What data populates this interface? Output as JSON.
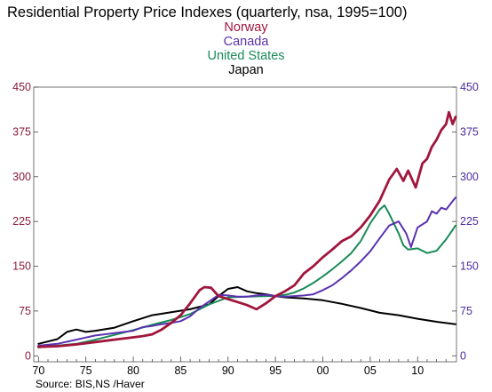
{
  "chart_data": {
    "type": "line",
    "title": "Residential Property Price Indexes  (quarterly, nsa, 1995=100)",
    "source": "Source:  BIS,NS /Haver",
    "xlabel": "",
    "ylabel": "",
    "xlim": [
      1969.5,
      2014.1
    ],
    "ylim": [
      -10,
      450
    ],
    "x_tick_values": [
      1970,
      1975,
      1980,
      1985,
      1990,
      1995,
      2000,
      2005,
      2010
    ],
    "x_tick_labels": [
      "70",
      "75",
      "80",
      "85",
      "90",
      "95",
      "00",
      "05",
      "10"
    ],
    "y_ticks_left": [
      0,
      75,
      150,
      225,
      300,
      375,
      450
    ],
    "y_ticks_right": [
      0,
      75,
      150,
      225,
      300,
      375,
      450
    ],
    "left_axis_color": "#8b1a3a",
    "right_axis_color": "#4b2aa0",
    "grid": false,
    "legend_position": "top-center",
    "series": [
      {
        "name": "Norway",
        "color": "#a0163c",
        "points": [
          [
            1970,
            15
          ],
          [
            1972,
            16
          ],
          [
            1974,
            19
          ],
          [
            1976,
            23
          ],
          [
            1978,
            27
          ],
          [
            1980,
            31
          ],
          [
            1981,
            33
          ],
          [
            1982,
            36
          ],
          [
            1983,
            44
          ],
          [
            1984,
            55
          ],
          [
            1985,
            68
          ],
          [
            1986,
            88
          ],
          [
            1987,
            110
          ],
          [
            1987.5,
            115
          ],
          [
            1988.2,
            114
          ],
          [
            1989,
            100
          ],
          [
            1990,
            95
          ],
          [
            1991,
            90
          ],
          [
            1992,
            85
          ],
          [
            1993,
            78
          ],
          [
            1994,
            88
          ],
          [
            1995,
            100
          ],
          [
            1996,
            108
          ],
          [
            1997,
            118
          ],
          [
            1998,
            138
          ],
          [
            1999,
            150
          ],
          [
            2000,
            165
          ],
          [
            2001,
            178
          ],
          [
            2002,
            192
          ],
          [
            2003,
            200
          ],
          [
            2004,
            215
          ],
          [
            2005,
            235
          ],
          [
            2006,
            260
          ],
          [
            2007,
            295
          ],
          [
            2007.8,
            313
          ],
          [
            2008.5,
            293
          ],
          [
            2009,
            310
          ],
          [
            2009.8,
            282
          ],
          [
            2010.5,
            322
          ],
          [
            2011,
            330
          ],
          [
            2011.5,
            350
          ],
          [
            2012,
            362
          ],
          [
            2012.5,
            378
          ],
          [
            2013,
            388
          ],
          [
            2013.3,
            408
          ],
          [
            2013.7,
            388
          ],
          [
            2014,
            400
          ]
        ]
      },
      {
        "name": "Canada",
        "color": "#5a32b0",
        "points": [
          [
            1970,
            17
          ],
          [
            1972,
            20
          ],
          [
            1974,
            27
          ],
          [
            1976,
            34
          ],
          [
            1978,
            38
          ],
          [
            1980,
            42
          ],
          [
            1981,
            48
          ],
          [
            1982,
            50
          ],
          [
            1983,
            53
          ],
          [
            1984,
            55
          ],
          [
            1985,
            58
          ],
          [
            1986,
            66
          ],
          [
            1987,
            80
          ],
          [
            1988,
            91
          ],
          [
            1989,
            102
          ],
          [
            1990,
            101
          ],
          [
            1991,
            99
          ],
          [
            1992,
            99
          ],
          [
            1993,
            101
          ],
          [
            1994,
            102
          ],
          [
            1995,
            100
          ],
          [
            1996,
            99
          ],
          [
            1997,
            100
          ],
          [
            1998,
            101
          ],
          [
            1999,
            103
          ],
          [
            2000,
            110
          ],
          [
            2001,
            118
          ],
          [
            2002,
            130
          ],
          [
            2003,
            143
          ],
          [
            2004,
            158
          ],
          [
            2005,
            175
          ],
          [
            2006,
            197
          ],
          [
            2007,
            218
          ],
          [
            2008,
            225
          ],
          [
            2008.8,
            205
          ],
          [
            2009.3,
            182
          ],
          [
            2010,
            215
          ],
          [
            2011,
            225
          ],
          [
            2011.5,
            242
          ],
          [
            2012,
            238
          ],
          [
            2012.5,
            248
          ],
          [
            2013,
            245
          ],
          [
            2013.5,
            255
          ],
          [
            2014,
            265
          ]
        ]
      },
      {
        "name": "United States",
        "color": "#1a8a58",
        "points": [
          [
            1970,
            14
          ],
          [
            1972,
            17
          ],
          [
            1974,
            20
          ],
          [
            1976,
            27
          ],
          [
            1978,
            35
          ],
          [
            1980,
            43
          ],
          [
            1982,
            52
          ],
          [
            1984,
            60
          ],
          [
            1986,
            70
          ],
          [
            1988,
            86
          ],
          [
            1990,
            98
          ],
          [
            1992,
            99
          ],
          [
            1994,
            100
          ],
          [
            1995,
            100
          ],
          [
            1996,
            102
          ],
          [
            1997,
            106
          ],
          [
            1998,
            113
          ],
          [
            1999,
            122
          ],
          [
            2000,
            133
          ],
          [
            2001,
            145
          ],
          [
            2002,
            158
          ],
          [
            2003,
            172
          ],
          [
            2004,
            192
          ],
          [
            2005,
            222
          ],
          [
            2006,
            245
          ],
          [
            2006.5,
            252
          ],
          [
            2007,
            238
          ],
          [
            2008,
            205
          ],
          [
            2008.5,
            185
          ],
          [
            2009,
            178
          ],
          [
            2010,
            180
          ],
          [
            2011,
            172
          ],
          [
            2012,
            176
          ],
          [
            2013,
            195
          ],
          [
            2014,
            218
          ]
        ]
      },
      {
        "name": "Japan",
        "color": "#000000",
        "points": [
          [
            1970,
            20
          ],
          [
            1972,
            28
          ],
          [
            1973,
            40
          ],
          [
            1974,
            44
          ],
          [
            1975,
            40
          ],
          [
            1976,
            42
          ],
          [
            1978,
            47
          ],
          [
            1980,
            58
          ],
          [
            1982,
            68
          ],
          [
            1984,
            73
          ],
          [
            1986,
            78
          ],
          [
            1988,
            86
          ],
          [
            1989,
            100
          ],
          [
            1990,
            112
          ],
          [
            1991,
            115
          ],
          [
            1992,
            108
          ],
          [
            1993,
            105
          ],
          [
            1994,
            103
          ],
          [
            1995,
            100
          ],
          [
            1996,
            98
          ],
          [
            1998,
            96
          ],
          [
            2000,
            93
          ],
          [
            2002,
            87
          ],
          [
            2004,
            80
          ],
          [
            2006,
            72
          ],
          [
            2008,
            68
          ],
          [
            2010,
            62
          ],
          [
            2012,
            57
          ],
          [
            2014,
            53
          ]
        ]
      }
    ]
  }
}
